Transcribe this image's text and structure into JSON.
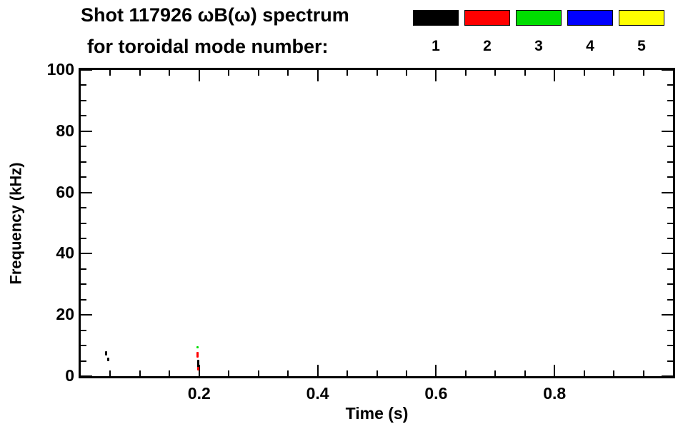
{
  "chart_data": {
    "type": "scatter",
    "title": "Shot 117926 ωB(ω) spectrum",
    "subtitle": "for toroidal mode number:",
    "xlabel": "Time (s)",
    "ylabel": "Frequency (kHz)",
    "xlim": [
      0.0,
      1.0
    ],
    "ylim": [
      0,
      100
    ],
    "x_major_ticks": [
      0.2,
      0.4,
      0.6,
      0.8
    ],
    "x_tick_labels": [
      "0.2",
      "0.4",
      "0.6",
      "0.8"
    ],
    "x_minor_step": 0.05,
    "y_major_ticks": [
      0,
      20,
      40,
      60,
      80,
      100
    ],
    "y_tick_labels": [
      "0",
      "20",
      "40",
      "60",
      "80",
      "100"
    ],
    "y_minor_step": 5,
    "grid": false,
    "legend": {
      "position": "top-right",
      "entries": [
        {
          "label": "1",
          "color": "#000000"
        },
        {
          "label": "2",
          "color": "#ff0000"
        },
        {
          "label": "3",
          "color": "#00dd00"
        },
        {
          "label": "4",
          "color": "#0000ff"
        },
        {
          "label": "5",
          "color": "#ffff00"
        }
      ]
    },
    "series": [
      {
        "name": "n=1",
        "color": "#000000",
        "points": [
          {
            "t": 0.043,
            "f": 7.5,
            "df": 1.5
          },
          {
            "t": 0.046,
            "f": 5.5,
            "df": 1.2
          },
          {
            "t": 0.198,
            "f": 4.0,
            "df": 2.5
          }
        ]
      },
      {
        "name": "n=2",
        "color": "#ff0000",
        "points": [
          {
            "t": 0.197,
            "f": 7.0,
            "df": 2.0
          },
          {
            "t": 0.198,
            "f": 2.5,
            "df": 1.2
          }
        ]
      },
      {
        "name": "n=3",
        "color": "#00dd00",
        "points": [
          {
            "t": 0.197,
            "f": 9.5,
            "df": 0.8
          }
        ]
      }
    ]
  }
}
